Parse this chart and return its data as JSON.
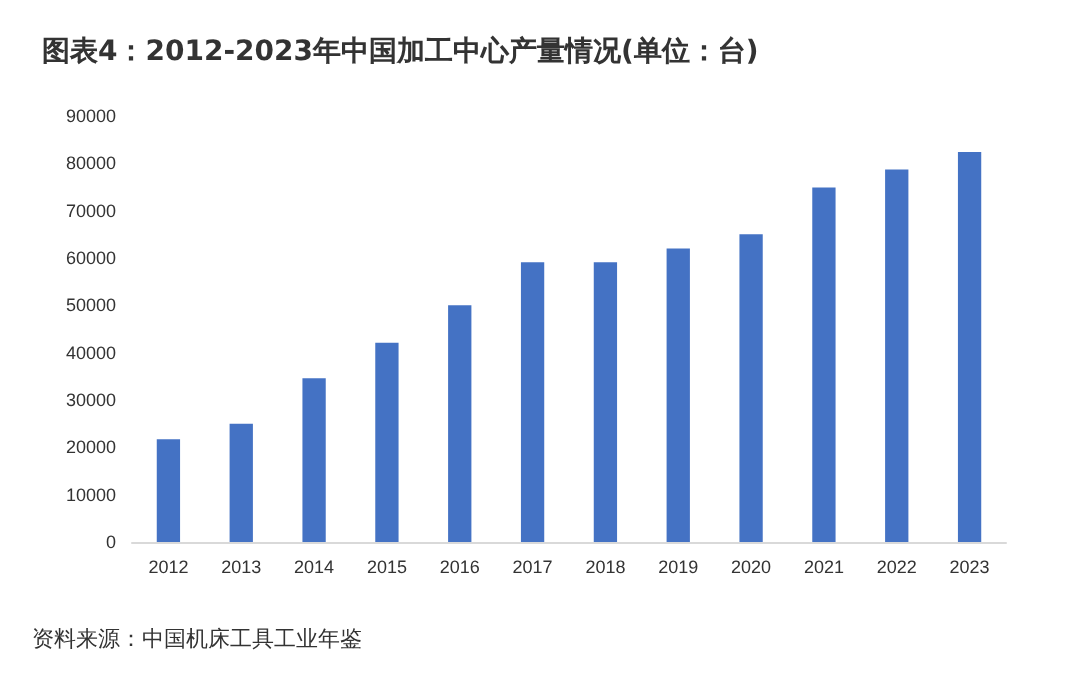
{
  "chart_data": {
    "type": "bar",
    "title": "图表4：2012-2023年中国加工中心产量情况(单位：台)",
    "categories": [
      "2012",
      "2013",
      "2014",
      "2015",
      "2016",
      "2017",
      "2018",
      "2019",
      "2020",
      "2021",
      "2022",
      "2023"
    ],
    "values": [
      21700,
      25000,
      34600,
      42100,
      50000,
      59100,
      59100,
      62000,
      65000,
      74900,
      78700,
      82400
    ],
    "color": "#4472c4",
    "ylim": [
      0,
      90000
    ],
    "yticks": [
      0,
      10000,
      20000,
      30000,
      40000,
      50000,
      60000,
      70000,
      80000,
      90000
    ],
    "grid": false,
    "annotations": [
      "资料来源：中国机床工具工业年鉴"
    ]
  }
}
